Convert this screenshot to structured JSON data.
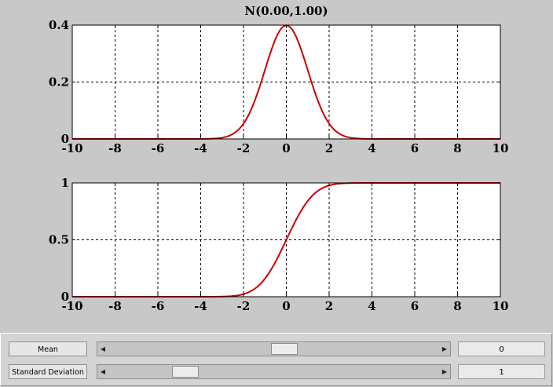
{
  "chart_data": [
    {
      "type": "line",
      "function": "normal_pdf",
      "title": "N(0.00,1.00)",
      "mean": 0.0,
      "std": 1.0,
      "xlim": [
        -10,
        10
      ],
      "ylim": [
        0,
        0.4
      ],
      "xticks": [
        -10,
        -8,
        -6,
        -4,
        -2,
        0,
        2,
        4,
        6,
        8,
        10
      ],
      "yticks": [
        0,
        0.2,
        0.4
      ],
      "xtick_labels": [
        "-10",
        "-8",
        "-6",
        "-4",
        "-2",
        "0",
        "2",
        "4",
        "6",
        "8",
        "10"
      ],
      "ytick_labels": [
        "0",
        "0.2",
        "0.4"
      ],
      "grid": true,
      "line_color": "#cc0000"
    },
    {
      "type": "line",
      "function": "normal_cdf",
      "title": "",
      "mean": 0.0,
      "std": 1.0,
      "xlim": [
        -10,
        10
      ],
      "ylim": [
        0,
        1
      ],
      "xticks": [
        -10,
        -8,
        -6,
        -4,
        -2,
        0,
        2,
        4,
        6,
        8,
        10
      ],
      "yticks": [
        0,
        0.5,
        1
      ],
      "xtick_labels": [
        "-10",
        "-8",
        "-6",
        "-4",
        "-2",
        "0",
        "2",
        "4",
        "6",
        "8",
        "10"
      ],
      "ytick_labels": [
        "0",
        "0.5",
        "1"
      ],
      "grid": true,
      "line_color": "#cc0000"
    }
  ],
  "controls": {
    "mean": {
      "label": "Mean",
      "value": "0",
      "slider_fraction": 0.535
    },
    "std": {
      "label": "Standard Deviation",
      "value": "1",
      "slider_fraction": 0.21
    }
  }
}
